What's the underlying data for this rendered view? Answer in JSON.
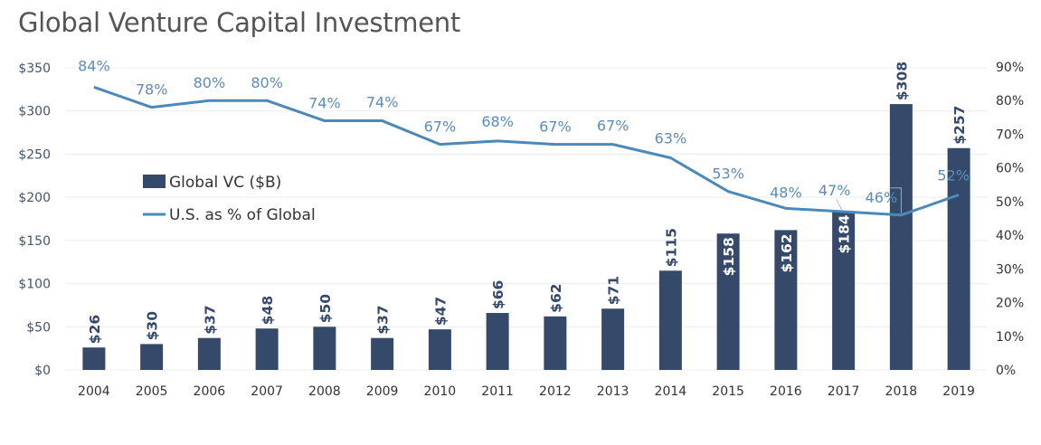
{
  "chart_data": {
    "type": "bar+line",
    "title": "Global Venture Capital Investment",
    "categories": [
      "2004",
      "2005",
      "2006",
      "2007",
      "2008",
      "2009",
      "2010",
      "2011",
      "2012",
      "2013",
      "2014",
      "2015",
      "2016",
      "2017",
      "2018",
      "2019"
    ],
    "series": [
      {
        "name": "Global VC ($B)",
        "type": "bar",
        "axis": "left",
        "color": "#354a6b",
        "values": [
          26,
          30,
          37,
          48,
          50,
          37,
          47,
          66,
          62,
          71,
          115,
          158,
          162,
          184,
          308,
          257
        ],
        "labels": [
          "$26",
          "$30",
          "$37",
          "$48",
          "$50",
          "$37",
          "$47",
          "$66",
          "$62",
          "$71",
          "$115",
          "$158",
          "$162",
          "$184",
          "$308",
          "$257"
        ]
      },
      {
        "name": "U.S. as % of Global",
        "type": "line",
        "axis": "right",
        "color": "#4a89b8",
        "values": [
          84,
          78,
          80,
          80,
          74,
          74,
          67,
          68,
          67,
          67,
          63,
          53,
          48,
          47,
          46,
          52
        ],
        "labels": [
          "84%",
          "78%",
          "80%",
          "80%",
          "74%",
          "74%",
          "67%",
          "68%",
          "67%",
          "67%",
          "63%",
          "53%",
          "48%",
          "47%",
          "46%",
          "52%"
        ]
      }
    ],
    "left_axis": {
      "ylim": [
        0,
        350
      ],
      "ticks": [
        0,
        50,
        100,
        150,
        200,
        250,
        300,
        350
      ],
      "tick_labels": [
        "$0",
        "$50",
        "$100",
        "$150",
        "$200",
        "$250",
        "$300",
        "$350"
      ]
    },
    "right_axis": {
      "ylim": [
        0,
        90
      ],
      "ticks": [
        0,
        10,
        20,
        30,
        40,
        50,
        60,
        70,
        80,
        90
      ],
      "tick_labels": [
        "0%",
        "10%",
        "20%",
        "30%",
        "40%",
        "50%",
        "60%",
        "70%",
        "80%",
        "90%"
      ]
    },
    "grid": true,
    "legend": {
      "position": "left-middle",
      "entries": [
        "Global VC ($B)",
        "U.S. as % of Global"
      ]
    }
  }
}
